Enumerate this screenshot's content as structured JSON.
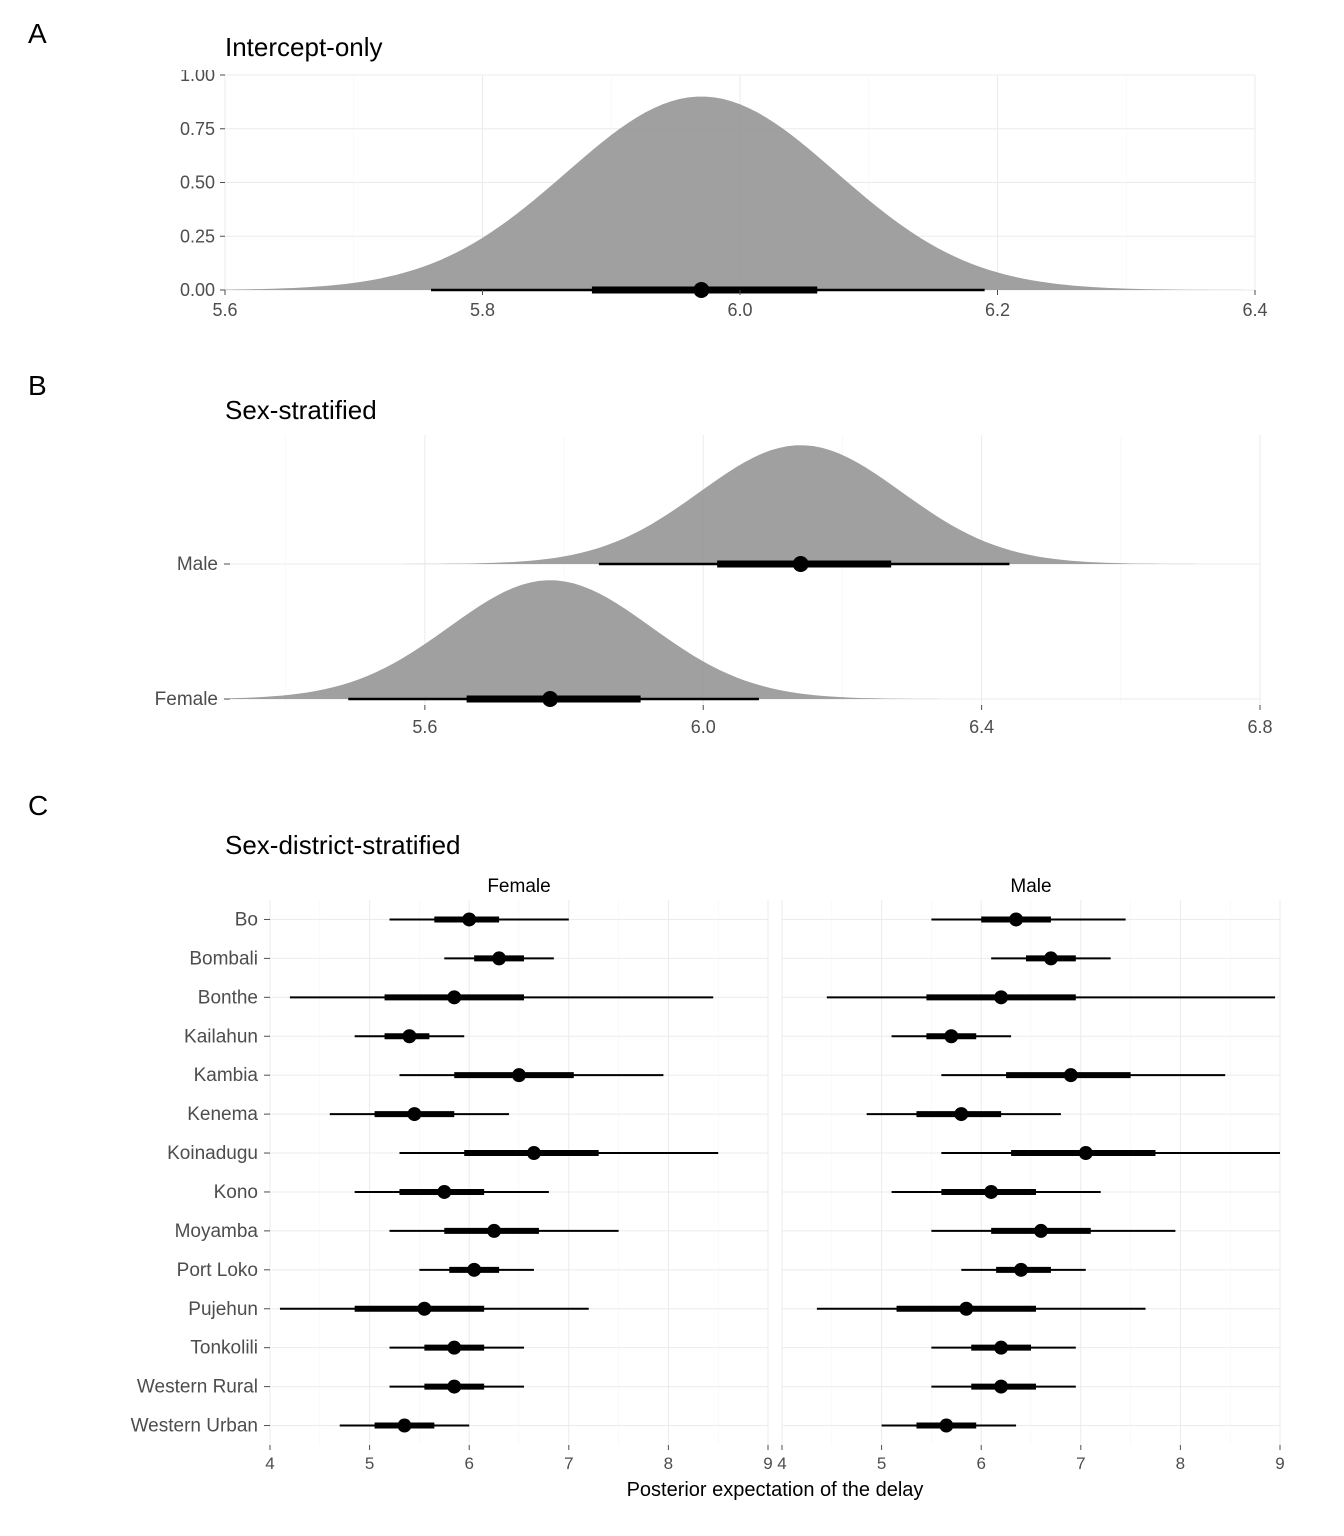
{
  "colors": {
    "background": "#ffffff",
    "panel_bg": "#ffffff",
    "grid_major": "#ebebeb",
    "grid_minor": "#f5f5f5",
    "density_fill": "#969696",
    "interval": "#000000",
    "point": "#000000",
    "axis_text": "#4d4d4d",
    "title_text": "#000000"
  },
  "typography": {
    "panel_letter_fontsize": 28,
    "panel_title_fontsize": 26,
    "axis_text_fontsize": 18,
    "category_label_fontsize": 19,
    "facet_label_fontsize": 19,
    "xaxis_label_fontsize": 20
  },
  "panelA": {
    "letter": "A",
    "title": "Intercept-only",
    "type": "density+interval",
    "xlim": [
      5.6,
      6.4
    ],
    "xticks": [
      5.6,
      5.8,
      6.0,
      6.2,
      6.4
    ],
    "ylim": [
      0.0,
      1.0
    ],
    "yticks": [
      0.0,
      0.25,
      0.5,
      0.75,
      1.0
    ],
    "density": {
      "mean": 5.97,
      "sd": 0.105,
      "peak": 0.9
    },
    "interval": {
      "median": 5.97,
      "q25": 5.885,
      "q75": 6.06,
      "lo": 5.76,
      "hi": 6.19
    },
    "thick_lw": 7,
    "thin_lw": 2.5,
    "point_r": 8
  },
  "panelB": {
    "letter": "B",
    "title": "Sex-stratified",
    "type": "density+interval (categorical y)",
    "xlim": [
      5.32,
      6.8
    ],
    "xticks": [
      5.6,
      6.0,
      6.4,
      6.8
    ],
    "categories": [
      "Male",
      "Female"
    ],
    "rows": [
      {
        "label": "Male",
        "density": {
          "mean": 6.14,
          "sd": 0.145,
          "peak": 1.0
        },
        "interval": {
          "median": 6.14,
          "q25": 6.02,
          "q75": 6.27,
          "lo": 5.85,
          "hi": 6.44
        }
      },
      {
        "label": "Female",
        "density": {
          "mean": 5.78,
          "sd": 0.145,
          "peak": 1.0
        },
        "interval": {
          "median": 5.78,
          "q25": 5.66,
          "q75": 5.91,
          "lo": 5.49,
          "hi": 6.08
        }
      }
    ],
    "thick_lw": 7,
    "thin_lw": 2.5,
    "point_r": 8
  },
  "panelC": {
    "letter": "C",
    "title": "Sex-district-stratified",
    "type": "point+interval (faceted)",
    "xaxis_label": "Posterior expectation of the delay",
    "xlim": [
      4,
      9
    ],
    "xticks": [
      4,
      5,
      6,
      7,
      8,
      9
    ],
    "facets": [
      "Female",
      "Male"
    ],
    "districts": [
      "Bo",
      "Bombali",
      "Bonthe",
      "Kailahun",
      "Kambia",
      "Kenema",
      "Koinadugu",
      "Kono",
      "Moyamba",
      "Port Loko",
      "Pujehun",
      "Tonkolili",
      "Western Rural",
      "Western Urban"
    ],
    "data": {
      "Female": [
        {
          "district": "Bo",
          "median": 6.0,
          "q25": 5.65,
          "q75": 6.3,
          "lo": 5.2,
          "hi": 7.0
        },
        {
          "district": "Bombali",
          "median": 6.3,
          "q25": 6.05,
          "q75": 6.55,
          "lo": 5.75,
          "hi": 6.85
        },
        {
          "district": "Bonthe",
          "median": 5.85,
          "q25": 5.15,
          "q75": 6.55,
          "lo": 4.2,
          "hi": 8.45
        },
        {
          "district": "Kailahun",
          "median": 5.4,
          "q25": 5.15,
          "q75": 5.6,
          "lo": 4.85,
          "hi": 5.95
        },
        {
          "district": "Kambia",
          "median": 6.5,
          "q25": 5.85,
          "q75": 7.05,
          "lo": 5.3,
          "hi": 7.95
        },
        {
          "district": "Kenema",
          "median": 5.45,
          "q25": 5.05,
          "q75": 5.85,
          "lo": 4.6,
          "hi": 6.4
        },
        {
          "district": "Koinadugu",
          "median": 6.65,
          "q25": 5.95,
          "q75": 7.3,
          "lo": 5.3,
          "hi": 8.5
        },
        {
          "district": "Kono",
          "median": 5.75,
          "q25": 5.3,
          "q75": 6.15,
          "lo": 4.85,
          "hi": 6.8
        },
        {
          "district": "Moyamba",
          "median": 6.25,
          "q25": 5.75,
          "q75": 6.7,
          "lo": 5.2,
          "hi": 7.5
        },
        {
          "district": "Port Loko",
          "median": 6.05,
          "q25": 5.8,
          "q75": 6.3,
          "lo": 5.5,
          "hi": 6.65
        },
        {
          "district": "Pujehun",
          "median": 5.55,
          "q25": 4.85,
          "q75": 6.15,
          "lo": 4.1,
          "hi": 7.2
        },
        {
          "district": "Tonkolili",
          "median": 5.85,
          "q25": 5.55,
          "q75": 6.15,
          "lo": 5.2,
          "hi": 6.55
        },
        {
          "district": "Western Rural",
          "median": 5.85,
          "q25": 5.55,
          "q75": 6.15,
          "lo": 5.2,
          "hi": 6.55
        },
        {
          "district": "Western Urban",
          "median": 5.35,
          "q25": 5.05,
          "q75": 5.65,
          "lo": 4.7,
          "hi": 6.0
        }
      ],
      "Male": [
        {
          "district": "Bo",
          "median": 6.35,
          "q25": 6.0,
          "q75": 6.7,
          "lo": 5.5,
          "hi": 7.45
        },
        {
          "district": "Bombali",
          "median": 6.7,
          "q25": 6.45,
          "q75": 6.95,
          "lo": 6.1,
          "hi": 7.3
        },
        {
          "district": "Bonthe",
          "median": 6.2,
          "q25": 5.45,
          "q75": 6.95,
          "lo": 4.45,
          "hi": 8.95
        },
        {
          "district": "Kailahun",
          "median": 5.7,
          "q25": 5.45,
          "q75": 5.95,
          "lo": 5.1,
          "hi": 6.3
        },
        {
          "district": "Kambia",
          "median": 6.9,
          "q25": 6.25,
          "q75": 7.5,
          "lo": 5.6,
          "hi": 8.45
        },
        {
          "district": "Kenema",
          "median": 5.8,
          "q25": 5.35,
          "q75": 6.2,
          "lo": 4.85,
          "hi": 6.8
        },
        {
          "district": "Koinadugu",
          "median": 7.05,
          "q25": 6.3,
          "q75": 7.75,
          "lo": 5.6,
          "hi": 9.0
        },
        {
          "district": "Kono",
          "median": 6.1,
          "q25": 5.6,
          "q75": 6.55,
          "lo": 5.1,
          "hi": 7.2
        },
        {
          "district": "Moyamba",
          "median": 6.6,
          "q25": 6.1,
          "q75": 7.1,
          "lo": 5.5,
          "hi": 7.95
        },
        {
          "district": "Port Loko",
          "median": 6.4,
          "q25": 6.15,
          "q75": 6.7,
          "lo": 5.8,
          "hi": 7.05
        },
        {
          "district": "Pujehun",
          "median": 5.85,
          "q25": 5.15,
          "q75": 6.55,
          "lo": 4.35,
          "hi": 7.65
        },
        {
          "district": "Tonkolili",
          "median": 6.2,
          "q25": 5.9,
          "q75": 6.5,
          "lo": 5.5,
          "hi": 6.95
        },
        {
          "district": "Western Rural",
          "median": 6.2,
          "q25": 5.9,
          "q75": 6.55,
          "lo": 5.5,
          "hi": 6.95
        },
        {
          "district": "Western Urban",
          "median": 5.65,
          "q25": 5.35,
          "q75": 5.95,
          "lo": 5.0,
          "hi": 6.35
        }
      ]
    },
    "thick_lw": 6,
    "thin_lw": 2,
    "point_r": 7
  }
}
